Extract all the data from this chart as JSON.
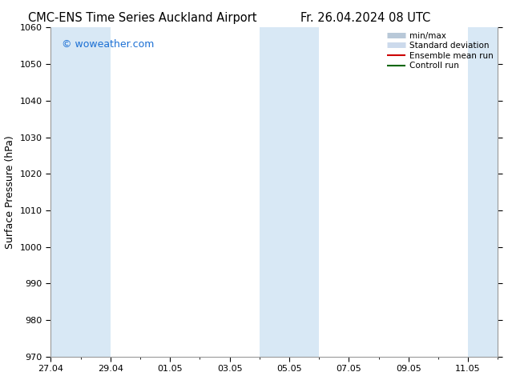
{
  "title_left": "CMC-ENS Time Series Auckland Airport",
  "title_right": "Fr. 26.04.2024 08 UTC",
  "ylabel": "Surface Pressure (hPa)",
  "ylim": [
    970,
    1060
  ],
  "yticks": [
    970,
    980,
    990,
    1000,
    1010,
    1020,
    1030,
    1040,
    1050,
    1060
  ],
  "x_start": "2024-04-27",
  "x_end": "2024-05-12",
  "xtick_labels": [
    "27.04",
    "29.04",
    "01.05",
    "03.05",
    "05.05",
    "07.05",
    "09.05",
    "11.05"
  ],
  "xtick_offsets": [
    0,
    2,
    4,
    6,
    8,
    10,
    12,
    14
  ],
  "shaded_bands": [
    {
      "x_start": 0,
      "x_end": 2
    },
    {
      "x_start": 7,
      "x_end": 9
    },
    {
      "x_start": 14,
      "x_end": 15
    }
  ],
  "shaded_color": "#d8e8f5",
  "watermark": "© woweather.com",
  "watermark_color": "#1a6fd4",
  "legend_entries": [
    {
      "label": "min/max",
      "color": "#b8c8d8",
      "lw": 5
    },
    {
      "label": "Standard deviation",
      "color": "#ccdaec",
      "lw": 5
    },
    {
      "label": "Ensemble mean run",
      "color": "#cc0000",
      "lw": 1.5
    },
    {
      "label": "Controll run",
      "color": "#006600",
      "lw": 1.5
    }
  ],
  "bg_color": "#ffffff",
  "title_fontsize": 10.5,
  "label_fontsize": 9,
  "tick_fontsize": 8,
  "watermark_fontsize": 9,
  "legend_fontsize": 7.5,
  "xlim": [
    0,
    15
  ]
}
